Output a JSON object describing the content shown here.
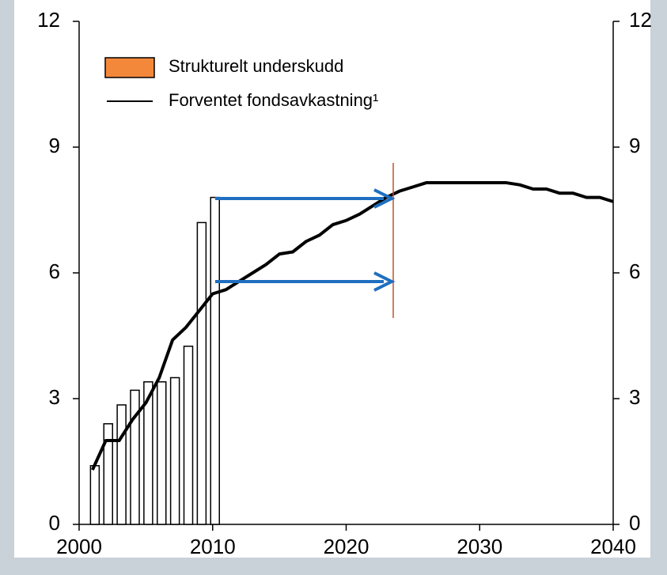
{
  "chart_data": {
    "type": "combo",
    "xlim": [
      2000,
      2040
    ],
    "xticks": [
      2000,
      2010,
      2020,
      2030,
      2040
    ],
    "ylim": [
      0,
      12
    ],
    "yticks": [
      0,
      3,
      6,
      9,
      12
    ],
    "y2lim": [
      0,
      12
    ],
    "y2ticks": [
      0,
      3,
      6,
      9,
      12
    ],
    "legend": "upper left",
    "series": [
      {
        "name": "Strukturelt underskudd",
        "type": "bar",
        "color": "#f4883a",
        "fill": "#ffffff",
        "edgecolor": "#000000",
        "x": [
          2001,
          2002,
          2003,
          2004,
          2005,
          2006,
          2007,
          2008,
          2009,
          2010
        ],
        "values": [
          1.4,
          2.4,
          2.85,
          3.2,
          3.4,
          3.4,
          3.5,
          4.25,
          7.2,
          7.8
        ]
      },
      {
        "name": "Forventet fondsavkastning¹",
        "type": "line",
        "color": "#000000",
        "x": [
          2001,
          2002,
          2003,
          2004,
          2005,
          2006,
          2007,
          2008,
          2009,
          2010,
          2011,
          2012,
          2013,
          2014,
          2015,
          2016,
          2017,
          2018,
          2019,
          2020,
          2021,
          2022,
          2023,
          2024,
          2025,
          2026,
          2027,
          2028,
          2029,
          2030,
          2031,
          2032,
          2033,
          2034,
          2035,
          2036,
          2037,
          2038,
          2039,
          2040
        ],
        "values": [
          1.3,
          2.0,
          2.0,
          2.5,
          2.9,
          3.5,
          4.4,
          4.7,
          5.1,
          5.5,
          5.6,
          5.8,
          6.0,
          6.2,
          6.45,
          6.5,
          6.75,
          6.9,
          7.15,
          7.25,
          7.4,
          7.6,
          7.8,
          7.95,
          8.05,
          8.15,
          8.15,
          8.15,
          8.15,
          8.15,
          8.15,
          8.15,
          8.1,
          8.0,
          8.0,
          7.9,
          7.9,
          7.8,
          7.8,
          7.7
        ]
      }
    ]
  }
}
